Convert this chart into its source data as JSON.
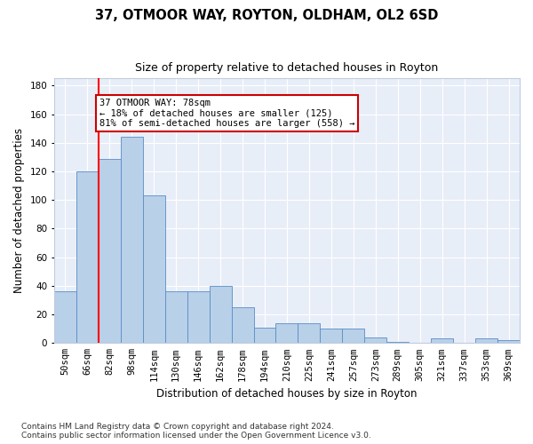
{
  "title": "37, OTMOOR WAY, ROYTON, OLDHAM, OL2 6SD",
  "subtitle": "Size of property relative to detached houses in Royton",
  "xlabel": "Distribution of detached houses by size in Royton",
  "ylabel": "Number of detached properties",
  "footnote": "Contains HM Land Registry data © Crown copyright and database right 2024.\nContains public sector information licensed under the Open Government Licence v3.0.",
  "categories": [
    "50sqm",
    "66sqm",
    "82sqm",
    "98sqm",
    "114sqm",
    "130sqm",
    "146sqm",
    "162sqm",
    "178sqm",
    "194sqm",
    "210sqm",
    "225sqm",
    "241sqm",
    "257sqm",
    "273sqm",
    "289sqm",
    "305sqm",
    "321sqm",
    "337sqm",
    "353sqm",
    "369sqm"
  ],
  "bar_values": [
    36,
    120,
    129,
    144,
    103,
    36,
    36,
    40,
    25,
    11,
    14,
    14,
    10,
    10,
    4,
    1,
    0,
    3,
    0,
    3,
    2
  ],
  "bar_color": "#b8d0e8",
  "bar_edge_color": "#5b8cc8",
  "background_color": "#e8eef8",
  "grid_color": "#ffffff",
  "red_line_x": 1.5,
  "annotation_line1": "37 OTMOOR WAY: 78sqm",
  "annotation_line2": "← 18% of detached houses are smaller (125)",
  "annotation_line3": "81% of semi-detached houses are larger (558) →",
  "annotation_box_color": "#ffffff",
  "annotation_box_edge_color": "#cc0000",
  "fig_bg": "#ffffff",
  "ylim": [
    0,
    185
  ],
  "yticks": [
    0,
    20,
    40,
    60,
    80,
    100,
    120,
    140,
    160,
    180
  ],
  "title_fontsize": 10.5,
  "subtitle_fontsize": 9,
  "ylabel_fontsize": 8.5,
  "xlabel_fontsize": 8.5,
  "tick_fontsize": 7.5,
  "footnote_fontsize": 6.5
}
